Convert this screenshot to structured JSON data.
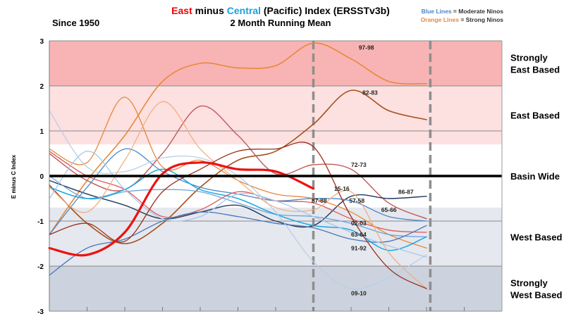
{
  "chart_data": {
    "type": "line",
    "title": {
      "part_east": "East",
      "part_minus": " minus ",
      "part_central": "Central",
      "part_rest": " (Pacific) Index (ERSSTv3b)",
      "line2": "2 Month Running Mean"
    },
    "subtitle_left": "Since 1950",
    "ylabel": "E minus C Index",
    "xlabel": "",
    "ylim": [
      -3,
      3
    ],
    "x_points": 13,
    "grid": true,
    "legend_placement": "top-right",
    "legend": {
      "blue_key": "Blue Lines",
      "blue_rest": " = Moderate Ninos",
      "orange_key": "Orange Lines",
      "orange_rest": " = Strong Ninos"
    },
    "y_ticks": [
      "3",
      "2",
      "1",
      "0",
      "-1",
      "-2",
      "-3"
    ],
    "y_tick_values": [
      3,
      2,
      1,
      0,
      -1,
      -2,
      -3
    ],
    "regions": [
      {
        "label_lines": [
          "Strongly",
          "East Based"
        ],
        "from": 2.0,
        "to": 3.0,
        "color": "#f8b4b4"
      },
      {
        "label_lines": [
          "East Based"
        ],
        "from": 0.7,
        "to": 2.0,
        "color": "#fde0e0"
      },
      {
        "label_lines": [
          "Basin Wide"
        ],
        "from": -0.7,
        "to": 0.7,
        "color": "#ffffff"
      },
      {
        "label_lines": [
          "West Based"
        ],
        "from": -2.0,
        "to": -0.7,
        "color": "#e5e8ee"
      },
      {
        "label_lines": [
          "Strongly",
          "West Based"
        ],
        "from": -3.0,
        "to": -2.0,
        "color": "#ccd3de"
      }
    ],
    "dashed_verticals_x": [
      7,
      10.1
    ],
    "series": [
      {
        "name": "97-98",
        "color": "#e8883a",
        "width": 1.6,
        "values": [
          -1.3,
          -0.1,
          0.9,
          2.1,
          2.5,
          2.4,
          2.45,
          2.95,
          2.6,
          2.1,
          2.05
        ],
        "label_x": 8.2,
        "label_y": 2.85
      },
      {
        "name": "82-83",
        "color": "#a5501c",
        "width": 1.6,
        "values": [
          -0.2,
          -1.05,
          -1.5,
          -1.05,
          -0.25,
          0.35,
          0.55,
          1.15,
          1.9,
          1.45,
          1.25
        ],
        "label_x": 8.3,
        "label_y": 1.85
      },
      {
        "name": "72-73",
        "color": "#c05a5a",
        "width": 1.4,
        "values": [
          0.5,
          -0.1,
          -0.3,
          0.5,
          1.55,
          0.9,
          0.05,
          0.25,
          0.15,
          -0.6,
          -0.95
        ],
        "label_x": 8.0,
        "label_y": 0.25
      },
      {
        "name": "86-87",
        "color": "#203a5c",
        "width": 1.4,
        "values": [
          -0.1,
          -0.4,
          -0.65,
          -0.95,
          -0.8,
          -0.65,
          -1.0,
          -1.1,
          -0.45,
          -0.5,
          -0.45
        ],
        "label_x": 9.25,
        "label_y": -0.35
      },
      {
        "name": "87-88",
        "color": "#4a86c8",
        "width": 1.3,
        "values": [
          -1.3,
          -0.25,
          0.6,
          0.1,
          -0.25,
          -0.4,
          -0.55,
          -0.5,
          -0.55,
          -0.9,
          -1.0
        ],
        "label_x": 6.95,
        "label_y": -0.55
      },
      {
        "name": "57-58",
        "color": "#dc5a5a",
        "width": 1.3,
        "values": [
          0.55,
          0.0,
          -0.3,
          -0.9,
          -0.75,
          -0.35,
          -0.55,
          -0.6,
          -0.95,
          -1.2,
          -1.25
        ],
        "label_x": 7.95,
        "label_y": -0.55
      },
      {
        "name": "65-66",
        "color": "#e8883a",
        "width": 1.3,
        "values": [
          0.6,
          0.3,
          1.75,
          0.2,
          0.35,
          -0.1,
          -0.4,
          -0.5,
          -0.8,
          -1.3,
          -1.6
        ],
        "label_x": 8.8,
        "label_y": -0.75
      },
      {
        "name": "02-03",
        "color": "#6fa3d8",
        "width": 1.3,
        "values": [
          0.0,
          -0.5,
          -0.35,
          -0.3,
          -0.35,
          -0.6,
          -0.85,
          -0.9,
          -1.05,
          -1.3,
          -1.35
        ],
        "label_x": 8.0,
        "label_y": -1.05
      },
      {
        "name": "63-64",
        "color": "#1da8e0",
        "width": 1.5,
        "values": [
          -0.25,
          -0.5,
          -0.3,
          0.15,
          -0.3,
          -0.5,
          -0.85,
          -1.1,
          -1.2,
          -1.65,
          -1.35
        ],
        "label_x": 8.0,
        "label_y": -1.3
      },
      {
        "name": "91-92",
        "color": "#4a76b8",
        "width": 1.3,
        "values": [
          -2.2,
          -1.6,
          -1.4,
          -1.0,
          -0.8,
          -0.9,
          -1.05,
          -1.15,
          -1.4,
          -1.45,
          -1.1
        ],
        "label_x": 8.0,
        "label_y": -1.6
      },
      {
        "name": "09-10",
        "color": "#b8d0e8",
        "width": 1.3,
        "values": [
          1.45,
          0.2,
          0.1,
          0.4,
          0.4,
          0.0,
          -0.8,
          -1.9,
          -2.5,
          -2.25,
          -1.75
        ],
        "label_x": 8.0,
        "label_y": -2.6
      },
      {
        "name": "",
        "color": "#f0b080",
        "width": 1.3,
        "values": [
          -0.25,
          -0.8,
          0.35,
          1.65,
          0.6,
          -0.1,
          -0.7,
          -0.75,
          -0.35,
          -1.7,
          -2.5
        ]
      },
      {
        "name": "",
        "color": "#a8c8e8",
        "width": 1.3,
        "values": [
          -0.5,
          0.55,
          -0.3,
          -0.95,
          -0.9,
          -0.4,
          -0.55,
          -0.9,
          -1.25,
          -1.55,
          -1.8
        ]
      },
      {
        "name": "",
        "color": "#9a3020",
        "width": 1.3,
        "values": [
          -1.3,
          -1.05,
          -1.45,
          -0.35,
          0.15,
          0.55,
          0.6,
          0.65,
          -0.9,
          -2.05,
          -2.5
        ]
      },
      {
        "name": "15-16",
        "color": "#ee1111",
        "width": 3.2,
        "values": [
          -1.6,
          -1.75,
          -1.25,
          0.05,
          0.3,
          0.15,
          0.1,
          -0.28,
          null,
          null,
          null
        ],
        "label_x": 7.55,
        "label_y": -0.28
      }
    ]
  }
}
